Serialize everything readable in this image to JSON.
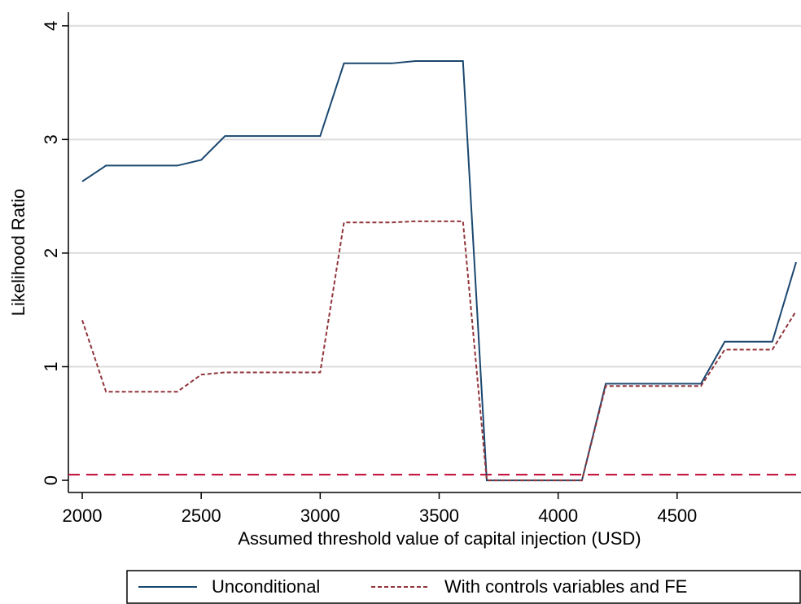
{
  "chart_data": {
    "type": "line",
    "x_label": "Assumed threshold value of capital injection (USD)",
    "y_label": "Likelihood Ratio",
    "x": [
      2000,
      2100,
      2200,
      2300,
      2400,
      2500,
      2600,
      2700,
      2800,
      2900,
      3000,
      3100,
      3200,
      3300,
      3400,
      3500,
      3600,
      3700,
      3800,
      3900,
      4000,
      4100,
      4200,
      4300,
      4400,
      4500,
      4600,
      4700,
      4800,
      4900,
      5000
    ],
    "series": [
      {
        "name": "Unconditional",
        "color": "#1a476f",
        "dash": false,
        "values": [
          2.63,
          2.77,
          2.77,
          2.77,
          2.77,
          2.82,
          3.03,
          3.03,
          3.03,
          3.03,
          3.03,
          3.67,
          3.67,
          3.67,
          3.69,
          3.69,
          3.69,
          0,
          0,
          0,
          0,
          0,
          0.85,
          0.85,
          0.85,
          0.85,
          0.85,
          1.22,
          1.22,
          1.22,
          1.92
        ]
      },
      {
        "name": "With controls variables and FE",
        "color": "#90353b",
        "dash": true,
        "values": [
          1.41,
          0.78,
          0.78,
          0.78,
          0.78,
          0.93,
          0.95,
          0.95,
          0.95,
          0.95,
          0.95,
          2.27,
          2.27,
          2.27,
          2.28,
          2.28,
          2.28,
          0,
          0,
          0,
          0,
          0,
          0.83,
          0.83,
          0.83,
          0.83,
          0.83,
          1.15,
          1.15,
          1.15,
          1.49
        ]
      }
    ],
    "reference_line": {
      "value": 0.05,
      "color": "#c10534"
    },
    "xlim": [
      2000,
      5000
    ],
    "xticks": [
      2000,
      2500,
      3000,
      3500,
      4000,
      4500
    ],
    "ylim": [
      -0.107,
      4.12
    ],
    "yticks": [
      0,
      1,
      2,
      3,
      4
    ],
    "grid": true,
    "legend": "bottom"
  }
}
